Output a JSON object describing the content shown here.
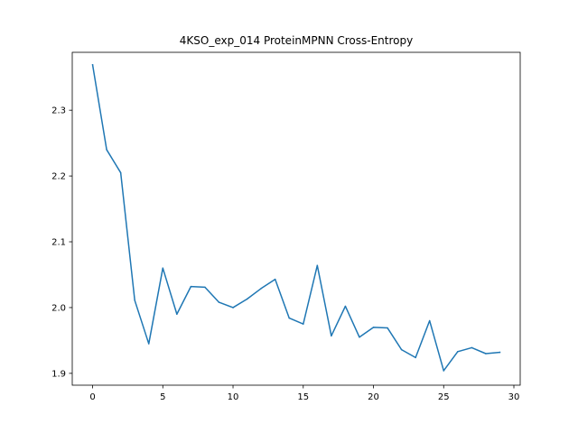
{
  "chart_data": {
    "type": "line",
    "title": "4KSO_exp_014 ProteinMPNN Cross-Entropy",
    "xlabel": "",
    "ylabel": "",
    "xlim": [
      -1.45,
      30.45
    ],
    "ylim": [
      1.882,
      2.388
    ],
    "xticks": [
      0,
      5,
      10,
      15,
      20,
      25,
      30
    ],
    "xtick_labels": [
      "0",
      "5",
      "10",
      "15",
      "20",
      "25",
      "30"
    ],
    "yticks": [
      1.9,
      2.0,
      2.1,
      2.2,
      2.3
    ],
    "ytick_labels": [
      "1.9",
      "2.0",
      "2.1",
      "2.2",
      "2.3"
    ],
    "grid": false,
    "series": [
      {
        "color": "#1f77b4",
        "x": [
          0,
          1,
          2,
          3,
          4,
          5,
          6,
          7,
          8,
          9,
          10,
          11,
          12,
          13,
          14,
          15,
          16,
          17,
          18,
          19,
          20,
          21,
          22,
          23,
          24,
          25,
          26,
          27,
          28,
          29
        ],
        "values": [
          2.369,
          2.24,
          2.205,
          2.011,
          1.945,
          2.06,
          1.99,
          2.032,
          2.031,
          2.008,
          2.0,
          2.013,
          2.029,
          2.043,
          1.984,
          1.975,
          2.064,
          1.957,
          2.002,
          1.955,
          1.97,
          1.969,
          1.936,
          1.924,
          1.98,
          1.904,
          1.933,
          1.939,
          1.93,
          1.932
        ]
      }
    ]
  }
}
